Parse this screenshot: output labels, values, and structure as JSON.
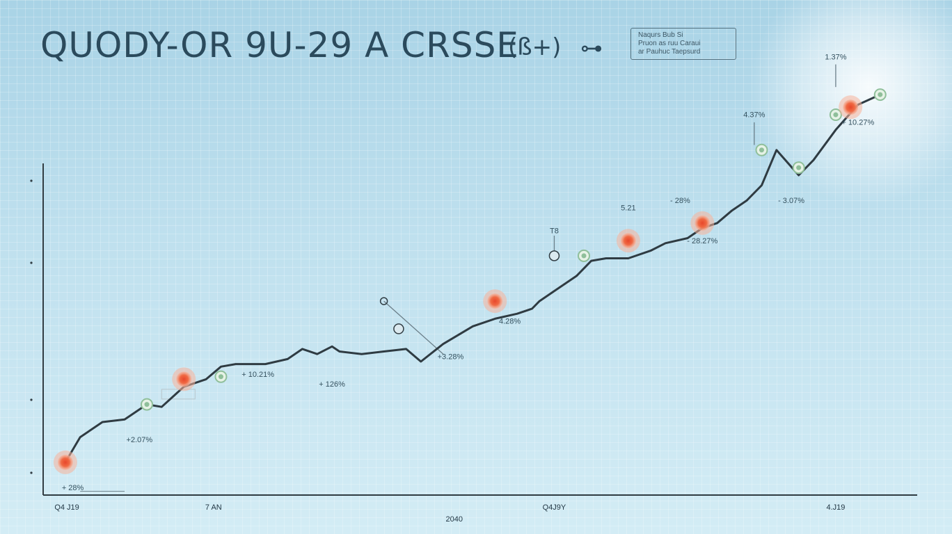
{
  "header": {
    "title": "QUODY-OR 9U-29 A CRSSE",
    "badge": "(ß+)",
    "icon": "plug-icon"
  },
  "legend": {
    "line1": "Naqurs Bub Si",
    "line2": "Pruon as ruu Caraui",
    "line3": "ar Pauhuc Taepsurd"
  },
  "colors": {
    "line": "#2f3b42",
    "marker_orange": "#e8472b",
    "marker_green": "#8fbf9a",
    "axis": "#2f3b42",
    "callout": "#6b7f89"
  },
  "chart_data": {
    "type": "line",
    "title": "QUODY-OR 9U-29 A CRSSE",
    "xlabel": "2040",
    "ylabel": "",
    "grid": true,
    "x_tick_labels": [
      "Q4 J19",
      "7 AN",
      "Q4J9Y",
      "4.J19"
    ],
    "series": [
      {
        "values": [
          [
            0,
            0.08
          ],
          [
            2,
            0.18
          ],
          [
            5,
            0.24
          ],
          [
            8,
            0.25
          ],
          [
            11,
            0.31
          ],
          [
            13,
            0.3
          ],
          [
            16,
            0.38
          ],
          [
            19,
            0.41
          ],
          [
            21,
            0.46
          ],
          [
            23,
            0.47
          ],
          [
            27,
            0.47
          ],
          [
            30,
            0.49
          ],
          [
            32,
            0.53
          ],
          [
            34,
            0.51
          ],
          [
            36,
            0.54
          ],
          [
            37,
            0.52
          ],
          [
            40,
            0.51
          ],
          [
            43,
            0.52
          ],
          [
            46,
            0.53
          ],
          [
            48,
            0.48
          ],
          [
            51,
            0.55
          ],
          [
            55,
            0.62
          ],
          [
            58,
            0.65
          ],
          [
            61,
            0.67
          ],
          [
            63,
            0.69
          ],
          [
            64,
            0.72
          ],
          [
            66,
            0.76
          ],
          [
            69,
            0.82
          ],
          [
            71,
            0.88
          ],
          [
            73,
            0.89
          ],
          [
            76,
            0.89
          ],
          [
            79,
            0.92
          ],
          [
            81,
            0.95
          ],
          [
            84,
            0.97
          ],
          [
            86,
            1.01
          ],
          [
            88,
            1.03
          ],
          [
            90,
            1.08
          ],
          [
            92,
            1.12
          ],
          [
            94,
            1.18
          ],
          [
            96,
            1.32
          ],
          [
            99,
            1.22
          ],
          [
            101,
            1.28
          ],
          [
            104,
            1.4
          ],
          [
            107,
            1.5
          ],
          [
            110,
            1.54
          ]
        ]
      }
    ],
    "markers": [
      {
        "x": 0,
        "y": 0.08,
        "kind": "orange"
      },
      {
        "x": 11,
        "y": 0.31,
        "kind": "green"
      },
      {
        "x": 16,
        "y": 0.41,
        "kind": "orange"
      },
      {
        "x": 21,
        "y": 0.42,
        "kind": "green"
      },
      {
        "x": 45,
        "y": 0.61,
        "kind": "ring"
      },
      {
        "x": 58,
        "y": 0.72,
        "kind": "orange"
      },
      {
        "x": 66,
        "y": 0.9,
        "kind": "ring"
      },
      {
        "x": 70,
        "y": 0.9,
        "kind": "green"
      },
      {
        "x": 76,
        "y": 0.96,
        "kind": "orange"
      },
      {
        "x": 86,
        "y": 1.03,
        "kind": "orange"
      },
      {
        "x": 94,
        "y": 1.32,
        "kind": "green"
      },
      {
        "x": 99,
        "y": 1.25,
        "kind": "green"
      },
      {
        "x": 104,
        "y": 1.46,
        "kind": "green"
      },
      {
        "x": 106,
        "y": 1.49,
        "kind": "orange"
      },
      {
        "x": 110,
        "y": 1.54,
        "kind": "green"
      }
    ],
    "annotations": [
      {
        "text": "+ 28%",
        "x": 2,
        "y": -0.02,
        "tx": 1,
        "ty": -0.03
      },
      {
        "text": "+2.07%",
        "x": 10,
        "y": 0.17,
        "tx": 10,
        "ty": 0.16
      },
      {
        "text": "+ 10.21%",
        "x": 26,
        "y": 0.43,
        "tx": 26,
        "ty": 0.42
      },
      {
        "text": "+ 126%",
        "x": 36,
        "y": 0.39,
        "tx": 36,
        "ty": 0.38
      },
      {
        "text": "+3.28%",
        "x": 52,
        "y": 0.5,
        "tx": 52,
        "ty": 0.49
      },
      {
        "text": "4.28%",
        "x": 60,
        "y": 0.64,
        "tx": 60,
        "ty": 0.63
      },
      {
        "text": "T8",
        "x": 66,
        "y": 1.0,
        "tx": 66,
        "ty": 0.99
      },
      {
        "text": "5.21",
        "x": 76,
        "y": 1.09,
        "tx": 76,
        "ty": 1.08
      },
      {
        "text": "- 28%",
        "x": 83,
        "y": 1.12,
        "tx": 83,
        "ty": 1.11
      },
      {
        "text": "- 28.27%",
        "x": 86,
        "y": 0.96,
        "tx": 86,
        "ty": 0.95
      },
      {
        "text": "4.37%",
        "x": 93,
        "y": 1.46,
        "tx": 93,
        "ty": 1.45
      },
      {
        "text": "- 3.07%",
        "x": 98,
        "y": 1.12,
        "tx": 98,
        "ty": 1.11
      },
      {
        "text": "+ 10.27%",
        "x": 107,
        "y": 1.43,
        "tx": 107,
        "ty": 1.42
      },
      {
        "text": "1.37%",
        "x": 104,
        "y": 1.69,
        "tx": 104,
        "ty": 1.68
      }
    ],
    "xlim": [
      -3,
      115
    ],
    "ylim": [
      -0.05,
      1.75
    ]
  }
}
